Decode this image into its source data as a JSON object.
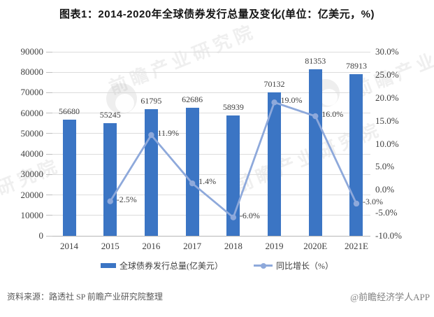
{
  "title": "图表1：2014-2020年全球债券发行总量及变化(单位：亿美元，%)",
  "watermark": {
    "text": "前瞻产业研究院"
  },
  "footer": {
    "source": "资料来源：路透社 SP 前瞻产业研究院整理",
    "credit": "@前瞻经济学人APP"
  },
  "colors": {
    "bar": "#3B75C4",
    "line": "#8EA9DB",
    "grid": "#DCDCDC",
    "axis_line": "#B7B7B7",
    "tick": "#BFBFBF",
    "label_text": "#3F3F3F",
    "title_text": "#141414",
    "source_text": "#595959",
    "credit_text": "#7F7F7F"
  },
  "chart_data": {
    "type": "bar+line",
    "categories": [
      "2014",
      "2015",
      "2016",
      "2017",
      "2018",
      "2019",
      "2020E",
      "2021E"
    ],
    "series": [
      {
        "name": "全球债券发行总量(亿美元）",
        "type": "bar",
        "axis": "left",
        "color": "#3B75C4",
        "values": [
          56680,
          55245,
          61795,
          62686,
          58939,
          70132,
          81353,
          78913
        ],
        "value_labels": [
          "56680",
          "55245",
          "61795",
          "62686",
          "58939",
          "70132",
          "81353",
          "78913"
        ]
      },
      {
        "name": "同比增长（%）",
        "type": "line",
        "axis": "right",
        "color": "#8EA9DB",
        "values": [
          null,
          -2.5,
          11.9,
          1.4,
          -6.0,
          19.0,
          16.0,
          -3.0
        ],
        "point_labels": [
          "",
          "-2.5%",
          "11.9%",
          "1.4%",
          "-6.0%",
          "19.0%",
          "16.0%",
          "-3.0%"
        ]
      }
    ],
    "left_axis": {
      "min": 0,
      "max": 90000,
      "step": 10000,
      "tick_labels": [
        "0",
        "10000",
        "20000",
        "30000",
        "40000",
        "50000",
        "60000",
        "70000",
        "80000",
        "90000"
      ]
    },
    "right_axis": {
      "min": -10,
      "max": 30,
      "step": 5,
      "tick_labels": [
        "-10.0%",
        "-5.0%",
        "0.0%",
        "5.0%",
        "10.0%",
        "15.0%",
        "20.0%",
        "25.0%",
        "30.0%"
      ]
    },
    "legend": [
      {
        "label": "全球债券发行总量(亿美元）",
        "marker": "bar"
      },
      {
        "label": "同比增长（%）",
        "marker": "line-dot"
      }
    ],
    "grid": true,
    "legend_position": "bottom"
  }
}
